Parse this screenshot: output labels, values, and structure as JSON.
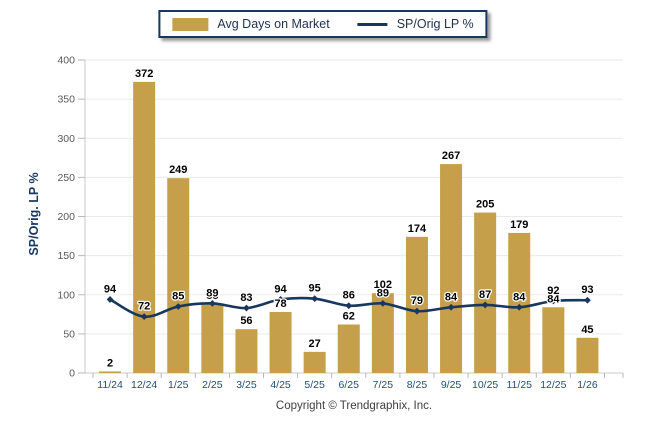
{
  "legend": {
    "bar_label": "Avg Days on Market",
    "line_label": "SP/Orig LP %"
  },
  "axes": {
    "y_title": "SP/Orig. LP %"
  },
  "footer": {
    "copyright": "Copyright © Trendgraphix, Inc."
  },
  "colors": {
    "bar": "#C59F49",
    "line": "#17375E",
    "grid": "#EAEAEA",
    "axis": "#C9C9C9",
    "tick": "#B9B9B9",
    "x_label": "#1F4E79",
    "y_label": "#595959",
    "data_label": "#000000",
    "legend_border": "#17375E"
  },
  "chart_data": {
    "type": "bar",
    "title": "",
    "xlabel": "",
    "ylabel": "SP/Orig. LP %",
    "categories": [
      "11/24",
      "12/24",
      "1/25",
      "2/25",
      "3/25",
      "4/25",
      "5/25",
      "6/25",
      "7/25",
      "8/25",
      "9/25",
      "10/25",
      "11/25",
      "12/25",
      "1/26"
    ],
    "series": [
      {
        "name": "Avg Days on Market",
        "type": "bar",
        "values": [
          2,
          372,
          249,
          88,
          56,
          78,
          27,
          62,
          102,
          174,
          267,
          205,
          179,
          84,
          45
        ]
      },
      {
        "name": "SP/Orig LP %",
        "type": "line",
        "values": [
          94,
          72,
          85,
          89,
          83,
          94,
          95,
          86,
          89,
          79,
          84,
          87,
          84,
          92,
          93
        ]
      }
    ],
    "ylim": [
      0,
      400
    ],
    "ytick_step": 50,
    "grid": true,
    "legend_position": "top"
  }
}
